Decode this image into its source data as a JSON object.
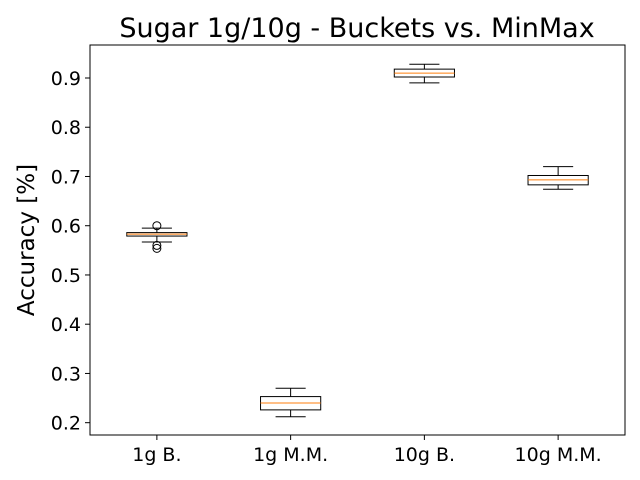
{
  "chart_data": {
    "type": "box",
    "title": "Sugar 1g/10g - Buckets vs. MinMax",
    "xlabel": "",
    "ylabel": "Accuracy [%]",
    "ylim": [
      0.175,
      0.967
    ],
    "yticks": [
      0.2,
      0.3,
      0.4,
      0.5,
      0.6,
      0.7,
      0.8,
      0.9
    ],
    "ytick_labels": [
      "0.2",
      "0.3",
      "0.4",
      "0.5",
      "0.6",
      "0.7",
      "0.8",
      "0.9"
    ],
    "grid": false,
    "categories": [
      "1g B.",
      "1g M.M.",
      "10g B.",
      "10g M.M."
    ],
    "boxes": [
      {
        "category": "1g B.",
        "whisker_low": 0.567,
        "q1": 0.579,
        "median": 0.583,
        "q3": 0.586,
        "whisker_high": 0.595,
        "outliers": [
          0.6,
          0.56,
          0.554
        ]
      },
      {
        "category": "1g M.M.",
        "whisker_low": 0.212,
        "q1": 0.226,
        "median": 0.24,
        "q3": 0.253,
        "whisker_high": 0.27,
        "outliers": []
      },
      {
        "category": "10g B.",
        "whisker_low": 0.89,
        "q1": 0.902,
        "median": 0.91,
        "q3": 0.918,
        "whisker_high": 0.928,
        "outliers": []
      },
      {
        "category": "10g M.M.",
        "whisker_low": 0.674,
        "q1": 0.683,
        "median": 0.693,
        "q3": 0.702,
        "whisker_high": 0.72,
        "outliers": []
      }
    ],
    "colors": {
      "box": "#000000",
      "median": "#ff7f0e",
      "axes": "#000000",
      "background": "#ffffff"
    }
  }
}
